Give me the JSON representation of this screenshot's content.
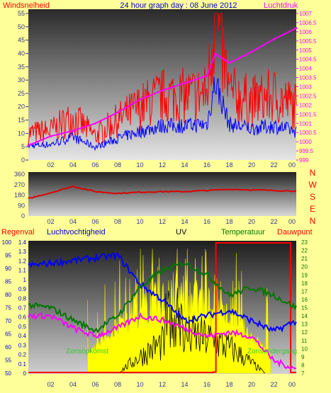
{
  "header": {
    "left": "Windsnelheid",
    "center": "24 hour graph day : 08 June 2012",
    "right": "Luchtdruk"
  },
  "panel1": {
    "left_axis_ticks": [
      "0",
      "5",
      "10",
      "15",
      "20",
      "25",
      "30",
      "35",
      "40",
      "45",
      "50",
      "55"
    ],
    "right_axis_ticks": [
      "999",
      "999.5",
      "1000",
      "1000.5",
      "1001",
      "1001.5",
      "1002",
      "1002.5",
      "1003",
      "1003.5",
      "1004",
      "1004.5",
      "1005",
      "1005.5",
      "1006",
      "1006.5",
      "1007"
    ]
  },
  "panel2": {
    "left_axis_ticks": [
      "0",
      "90",
      "180",
      "270",
      "360"
    ],
    "compass": [
      "N",
      "W",
      "S",
      "E",
      "N"
    ]
  },
  "panel3": {
    "labels": {
      "regenval": "Regenval",
      "luchtvochtigheid": "Luchtvochtigheid",
      "uv": "UV",
      "temperatuur": "Temperatuur",
      "dauwpunt": "Dauwpunt",
      "zonsopkomst": "Zonsopkomst",
      "zonsondergang": "Zonsondergang"
    },
    "humidity_ticks": [
      "50",
      "55",
      "60",
      "65",
      "70",
      "75",
      "80",
      "85",
      "90",
      "95",
      "100"
    ],
    "rain_ticks": [
      "0",
      "0.1",
      "0.2",
      "0.3",
      "0.4",
      "0.5",
      "0.6",
      "0.7",
      "0.8",
      "0.9",
      "1",
      "1.1",
      "1.2",
      "1.3",
      "1.4"
    ],
    "temp_ticks": [
      "7",
      "8",
      "9",
      "10",
      "11",
      "12",
      "13",
      "14",
      "15",
      "16",
      "17",
      "18",
      "19",
      "20",
      "21",
      "22",
      "23"
    ]
  },
  "x_ticks": [
    "02",
    "04",
    "06",
    "08",
    "10",
    "12",
    "14",
    "16",
    "18",
    "20",
    "22",
    "00"
  ],
  "colors": {
    "background": "#ffff99",
    "wind_gust": "#ff0000",
    "wind_avg": "#0000ff",
    "pressure": "#ff00ff",
    "direction": "#dd0000",
    "humidity": "#0000ff",
    "temperature": "#007700",
    "dewpoint": "#ff00ff",
    "uv": "#ffff00",
    "solar": "#000000",
    "rain": "#ff0000"
  },
  "chart_data": [
    {
      "type": "line",
      "x": [
        "00:00",
        "02:00",
        "04:00",
        "06:00",
        "08:00",
        "10:00",
        "12:00",
        "14:00",
        "16:00",
        "16:45",
        "18:00",
        "20:00",
        "22:00",
        "00:00"
      ],
      "series": [
        {
          "name": "Windsnelheid",
          "values": [
            10,
            11,
            16,
            9,
            15,
            20,
            24,
            24,
            25,
            55,
            25,
            22,
            24,
            20
          ]
        },
        {
          "name": "Luchtdruk",
          "values": [
            999.8,
            1000.3,
            1000.6,
            1001.0,
            1001.6,
            1002.3,
            1002.8,
            1003.2,
            1003.6,
            1004.8,
            1004.3,
            1004.9,
            1005.6,
            1006.2
          ]
        }
      ],
      "ylim": [
        0,
        55
      ],
      "y2lim": [
        999,
        1007
      ]
    },
    {
      "type": "line",
      "x": [
        "00:00",
        "02:00",
        "04:00",
        "06:00",
        "08:00",
        "10:00",
        "12:00",
        "14:00",
        "16:00",
        "18:00",
        "20:00",
        "22:00",
        "00:00"
      ],
      "series": [
        {
          "name": "",
          "values": [
            150,
            200,
            255,
            210,
            195,
            205,
            210,
            210,
            220,
            230,
            225,
            220,
            215
          ]
        }
      ],
      "ylim": [
        0,
        360
      ]
    },
    {
      "type": "line",
      "x": [
        "00:00",
        "02:00",
        "04:00",
        "06:00",
        "08:00",
        "10:00",
        "12:00",
        "14:00",
        "16:00",
        "18:00",
        "20:00",
        "22:00",
        "00:00"
      ],
      "series": [
        {
          "name": "Luchtvochtigheid",
          "values": [
            91,
            92,
            93,
            94,
            95,
            84,
            78,
            70,
            72,
            74,
            70,
            66,
            70
          ]
        },
        {
          "name": "Temperatuur",
          "values": [
            15.3,
            15.0,
            13.5,
            12.2,
            14.0,
            17.5,
            19.5,
            20.5,
            19.0,
            16.5,
            17.5,
            16.5,
            15.0
          ]
        },
        {
          "name": "Dauwpunt",
          "values": [
            14.0,
            14.0,
            12.5,
            11.5,
            12.5,
            14.0,
            13.5,
            12.5,
            11.5,
            12.0,
            11.5,
            8.5,
            7.5
          ]
        }
      ],
      "ylim": [
        50,
        100
      ],
      "y2lim": [
        7,
        23
      ]
    }
  ]
}
